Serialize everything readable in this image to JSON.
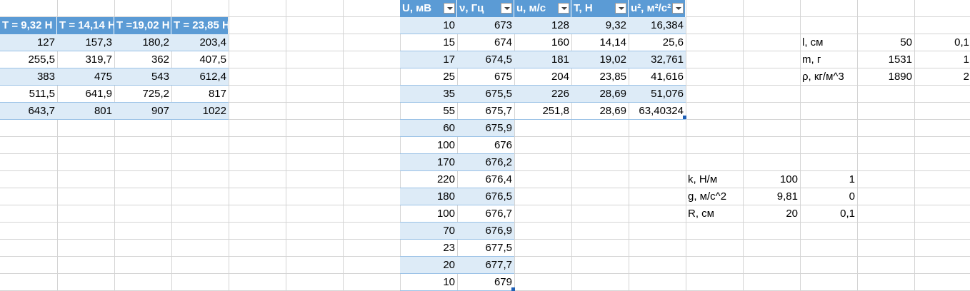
{
  "left_table": {
    "headers": [
      "T = 9,32 Н",
      "T = 14,14 Н",
      "T =19,02 Н",
      "T = 23,85 Н"
    ],
    "rows": [
      [
        "127",
        "157,3",
        "180,2",
        "203,4"
      ],
      [
        "255,5",
        "319,7",
        "362",
        "407,5"
      ],
      [
        "383",
        "475",
        "543",
        "612,4"
      ],
      [
        "511,5",
        "641,9",
        "725,2",
        "817"
      ],
      [
        "643,7",
        "801",
        "907",
        "1022"
      ]
    ]
  },
  "mid_table": {
    "headers": [
      "U, мВ",
      "ν, Гц",
      "u, м/с",
      "T, Н",
      "u², м²/с²"
    ],
    "u_rows": [
      [
        "10",
        "673"
      ],
      [
        "15",
        "674"
      ],
      [
        "17",
        "674,5"
      ],
      [
        "25",
        "675"
      ],
      [
        "35",
        "675,5"
      ],
      [
        "55",
        "675,7"
      ],
      [
        "60",
        "675,9"
      ],
      [
        "100",
        "676"
      ],
      [
        "170",
        "676,2"
      ],
      [
        "220",
        "676,4"
      ],
      [
        "180",
        "676,5"
      ],
      [
        "100",
        "676,7"
      ],
      [
        "70",
        "676,9"
      ],
      [
        "23",
        "677,5"
      ],
      [
        "20",
        "677,7"
      ],
      [
        "10",
        "679"
      ]
    ],
    "t_rows": [
      [
        "128",
        "9,32",
        "16,384"
      ],
      [
        "160",
        "14,14",
        "25,6"
      ],
      [
        "181",
        "19,02",
        "32,761"
      ],
      [
        "204",
        "23,85",
        "41,616"
      ],
      [
        "226",
        "28,69",
        "51,076"
      ],
      [
        "251,8",
        "28,69",
        "63,40324"
      ]
    ]
  },
  "params_top": [
    [
      "l, см",
      "50",
      "0,1"
    ],
    [
      "m, г",
      "1531",
      "1"
    ],
    [
      "ρ, кг/м^3",
      "1890",
      "2"
    ]
  ],
  "params_bottom": [
    [
      "k, Н/м",
      "100",
      "1"
    ],
    [
      "g, м/с^2",
      "9,81",
      "0"
    ],
    [
      "R, см",
      "20",
      "0,1"
    ]
  ]
}
